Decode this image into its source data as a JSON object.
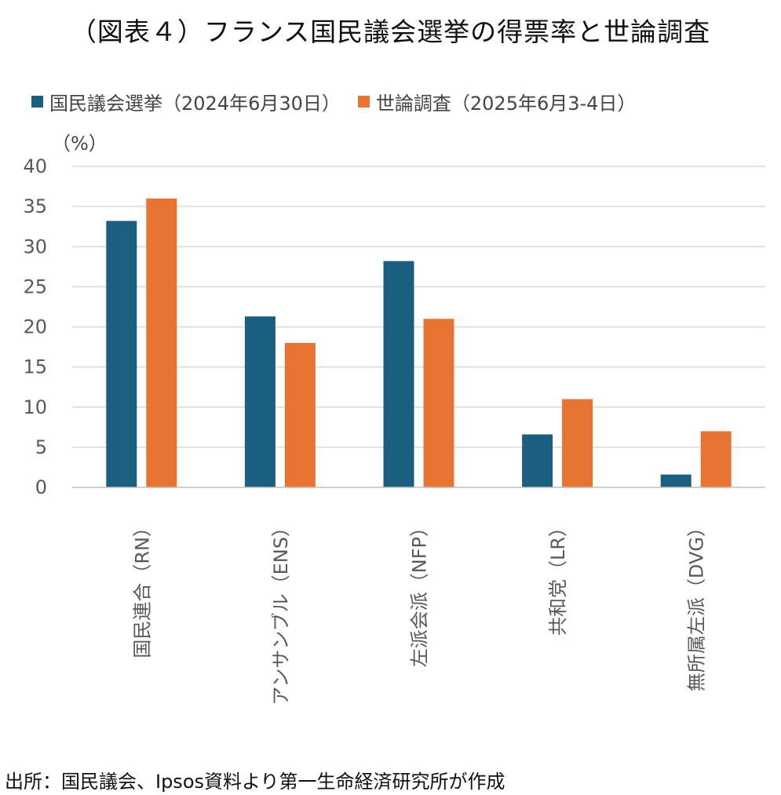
{
  "title": "（図表４）フランス国民議会選挙の得票率と世論調査",
  "unit": "（%）",
  "source": "出所：国民議会、Ipsos資料より第一生命経済研究所が作成",
  "colors": {
    "election": "#1a5e80",
    "poll": "#e87434",
    "grid": "#d9d9d9",
    "axis": "#bfbfbf",
    "tick": "#595959"
  },
  "chart_data": {
    "type": "bar",
    "categories": [
      "国民連合（RN）",
      "アンサンブル（ENS）",
      "左派会派（NFP）",
      "共和党（LR）",
      "無所属左派（DVG）"
    ],
    "series": [
      {
        "name": "国民議会選挙（2024年6月30日）",
        "values": [
          33.2,
          21.3,
          28.2,
          6.6,
          1.6
        ]
      },
      {
        "name": "世論調査（2025年6月3-4日）",
        "values": [
          36,
          18,
          21,
          11,
          7
        ]
      }
    ],
    "yticks": [
      "0",
      "5",
      "10",
      "15",
      "20",
      "25",
      "30",
      "35",
      "40"
    ],
    "ylim": [
      0,
      40
    ],
    "grid": true,
    "legend": "top-left"
  }
}
